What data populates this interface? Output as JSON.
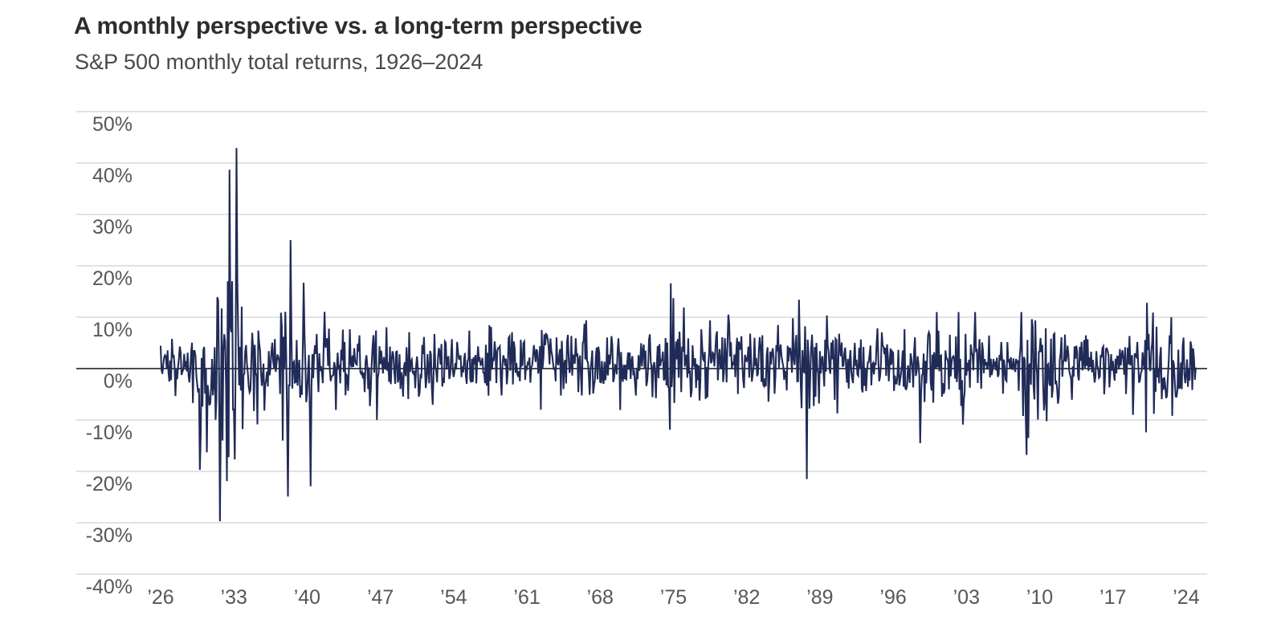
{
  "header": {
    "title": "A monthly perspective vs. a long-term perspective",
    "subtitle": "S&P 500 monthly total returns, 1926–2024"
  },
  "chart_data": {
    "type": "line",
    "title": "A monthly perspective vs. a long-term perspective",
    "subtitle": "S&P 500 monthly total returns, 1926–2024",
    "xlabel": "",
    "ylabel": "",
    "unit": "%",
    "frequency": "monthly",
    "x_range_years": [
      1926,
      2024
    ],
    "ylim": [
      -40,
      50
    ],
    "grid": true,
    "legend": false,
    "zero_line": true,
    "y_ticks": [
      {
        "value": 50,
        "label": "50%"
      },
      {
        "value": 40,
        "label": "40%"
      },
      {
        "value": 30,
        "label": "30%"
      },
      {
        "value": 20,
        "label": "20%"
      },
      {
        "value": 10,
        "label": "10%"
      },
      {
        "value": 0,
        "label": "0%"
      },
      {
        "value": -10,
        "label": "-10%"
      },
      {
        "value": -20,
        "label": "-20%"
      },
      {
        "value": -30,
        "label": "-30%"
      },
      {
        "value": -40,
        "label": "-40%"
      }
    ],
    "x_ticks": [
      {
        "year": 1926,
        "label": "’26"
      },
      {
        "year": 1933,
        "label": "’33"
      },
      {
        "year": 1940,
        "label": "’40"
      },
      {
        "year": 1947,
        "label": "’47"
      },
      {
        "year": 1954,
        "label": "’54"
      },
      {
        "year": 1961,
        "label": "’61"
      },
      {
        "year": 1968,
        "label": "’68"
      },
      {
        "year": 1975,
        "label": "’75"
      },
      {
        "year": 1982,
        "label": "’82"
      },
      {
        "year": 1989,
        "label": "’89"
      },
      {
        "year": 1996,
        "label": "’96"
      },
      {
        "year": 2003,
        "label": "’03"
      },
      {
        "year": 2010,
        "label": "’10"
      },
      {
        "year": 2017,
        "label": "’17"
      },
      {
        "year": 2024,
        "label": "’24"
      }
    ],
    "colors": {
      "line": "#202b57",
      "grid": "#d8d8d8",
      "zero_line": "#333333",
      "title": "#2d2d2d",
      "subtitle": "#48494b",
      "tick": "#55575a",
      "background": "#ffffff"
    },
    "typical_monthly_return_pct": 0.9,
    "volatility_eras": [
      {
        "from": 1926,
        "to": 1928,
        "mean": 0.8,
        "sd": 2.6,
        "min": -6.5,
        "max": 11
      },
      {
        "from": 1929,
        "to": 1929,
        "mean": -0.8,
        "sd": 5.5,
        "min": -19.7,
        "max": 11
      },
      {
        "from": 1930,
        "to": 1931,
        "mean": -1.5,
        "sd": 7.5,
        "min": -18,
        "max": 14
      },
      {
        "from": 1932,
        "to": 1933,
        "mean": 0.5,
        "sd": 9.0,
        "min": -20,
        "max": 17
      },
      {
        "from": 1934,
        "to": 1936,
        "mean": 1.0,
        "sd": 4.4,
        "min": -11,
        "max": 13.5
      },
      {
        "from": 1937,
        "to": 1942,
        "mean": 0.1,
        "sd": 5.2,
        "min": -16.5,
        "max": 16.5
      },
      {
        "from": 1943,
        "to": 1949,
        "mean": 0.9,
        "sd": 3.3,
        "min": -9.5,
        "max": 11
      },
      {
        "from": 1950,
        "to": 1965,
        "mean": 1.1,
        "sd": 2.9,
        "min": -8,
        "max": 11
      },
      {
        "from": 1966,
        "to": 1974,
        "mean": 0.3,
        "sd": 3.6,
        "min": -10.5,
        "max": 11
      },
      {
        "from": 1975,
        "to": 1986,
        "mean": 1.1,
        "sd": 3.8,
        "min": -10.5,
        "max": 13.5
      },
      {
        "from": 1987,
        "to": 1990,
        "mean": 0.8,
        "sd": 4.2,
        "min": -11.5,
        "max": 13
      },
      {
        "from": 1991,
        "to": 1996,
        "mean": 1.1,
        "sd": 2.5,
        "min": -6,
        "max": 9
      },
      {
        "from": 1997,
        "to": 2003,
        "mean": 0.6,
        "sd": 4.4,
        "min": -12.5,
        "max": 11
      },
      {
        "from": 2004,
        "to": 2007,
        "mean": 0.8,
        "sd": 2.2,
        "min": -5.5,
        "max": 7
      },
      {
        "from": 2008,
        "to": 2011,
        "mean": 0.3,
        "sd": 4.7,
        "min": -13.5,
        "max": 11
      },
      {
        "from": 2012,
        "to": 2019,
        "mean": 1.0,
        "sd": 2.9,
        "min": -8.5,
        "max": 9
      },
      {
        "from": 2020,
        "to": 2020,
        "mean": 1.2,
        "sd": 5.2,
        "min": -12,
        "max": 12
      },
      {
        "from": 2021,
        "to": 2024,
        "mean": 0.9,
        "sd": 3.5,
        "min": -9,
        "max": 10
      }
    ],
    "notable_months": [
      [
        1929,
        10,
        -19.7
      ],
      [
        1929,
        11,
        -12.8
      ],
      [
        1930,
        6,
        -16.3
      ],
      [
        1931,
        6,
        13.9
      ],
      [
        1931,
        9,
        -29.7
      ],
      [
        1931,
        12,
        -14.0
      ],
      [
        1932,
        5,
        -21.9
      ],
      [
        1932,
        8,
        38.7
      ],
      [
        1933,
        2,
        -17.7
      ],
      [
        1933,
        4,
        42.9
      ],
      [
        1933,
        5,
        16.8
      ],
      [
        1937,
        9,
        -14.0
      ],
      [
        1938,
        3,
        -24.9
      ],
      [
        1938,
        6,
        25.0
      ],
      [
        1939,
        9,
        16.7
      ],
      [
        1940,
        5,
        -22.9
      ],
      [
        1946,
        9,
        -10.0
      ],
      [
        1962,
        5,
        -8.0
      ],
      [
        1974,
        9,
        -11.9
      ],
      [
        1974,
        10,
        16.6
      ],
      [
        1975,
        1,
        13.7
      ],
      [
        1976,
        1,
        11.9
      ],
      [
        1987,
        1,
        13.4
      ],
      [
        1987,
        10,
        -21.5
      ],
      [
        1998,
        8,
        -14.5
      ],
      [
        2002,
        9,
        -10.9
      ],
      [
        2008,
        9,
        -9.0
      ],
      [
        2008,
        10,
        -16.8
      ],
      [
        2009,
        4,
        9.6
      ],
      [
        2018,
        12,
        -9.0
      ],
      [
        2020,
        3,
        -12.4
      ],
      [
        2020,
        4,
        12.8
      ],
      [
        2020,
        11,
        10.9
      ],
      [
        2022,
        9,
        -9.2
      ]
    ],
    "noise_seed": 1926
  }
}
